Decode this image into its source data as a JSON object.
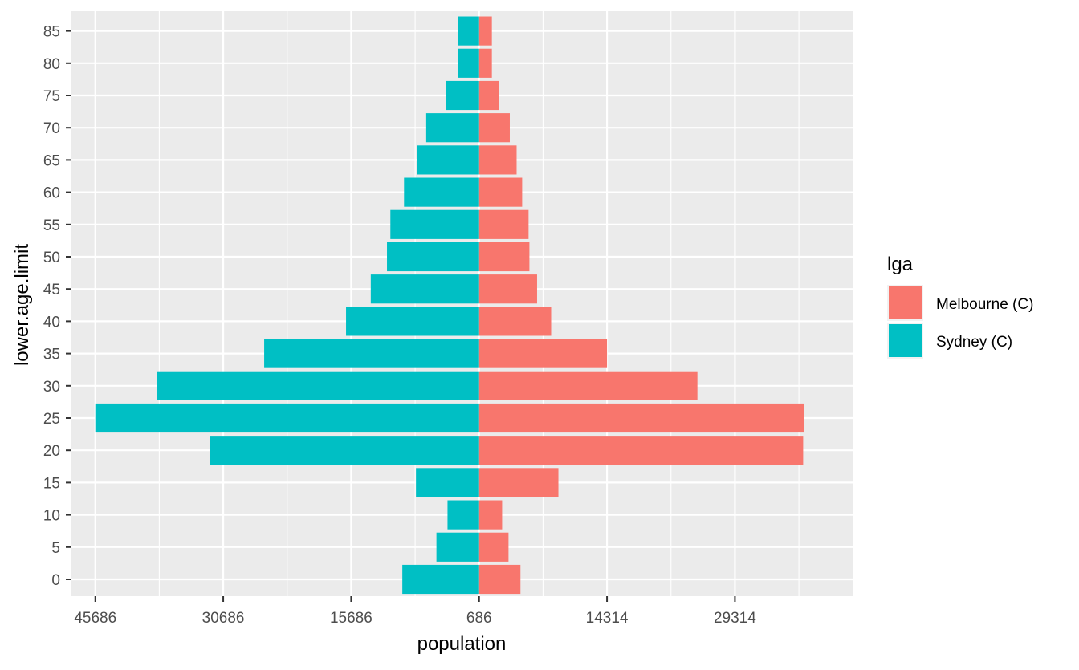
{
  "chart_data": {
    "type": "bar",
    "orientation": "horizontal",
    "title": "",
    "xlabel": "population",
    "ylabel": "lower.age.limit",
    "grid": true,
    "legend_position": "right",
    "legend_title": "lga",
    "xlim": [
      -47800,
      43800
    ],
    "x_tick_values": [
      -45000,
      -30000,
      -15000,
      0,
      15000,
      30000
    ],
    "x_tick_labels": [
      "45686",
      "30686",
      "15686",
      "686",
      "14314",
      "29314"
    ],
    "x_minor_values": [
      -37500,
      -22500,
      -7500,
      7500,
      22500,
      37500
    ],
    "categories": [
      "0",
      "5",
      "10",
      "15",
      "20",
      "25",
      "30",
      "35",
      "40",
      "45",
      "50",
      "55",
      "60",
      "65",
      "70",
      "75",
      "80",
      "85"
    ],
    "series": [
      {
        "name": "Melbourne (C)",
        "color": "#F8766D",
        "values": [
          4850,
          3450,
          2700,
          9300,
          38000,
          38100,
          25600,
          15000,
          8450,
          6800,
          5900,
          5800,
          5050,
          4400,
          3600,
          2300,
          1500,
          1500
        ]
      },
      {
        "name": "Sydney (C)",
        "color": "#00BFC4",
        "values": [
          -9000,
          -5000,
          -3700,
          -7400,
          -31600,
          -45000,
          -37800,
          -25200,
          -15600,
          -12700,
          -10800,
          -10400,
          -8800,
          -7300,
          -6200,
          -3900,
          -2500,
          -2500
        ]
      }
    ]
  }
}
